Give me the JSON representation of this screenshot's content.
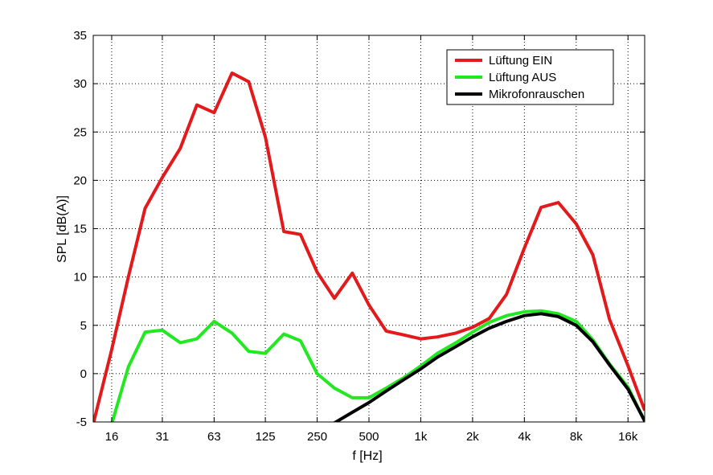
{
  "chart_data": {
    "type": "line",
    "xlabel": "f [Hz]",
    "ylabel": "SPL [dB(A)]",
    "x_scale": "log",
    "xlim": [
      12.5,
      20000
    ],
    "ylim": [
      -5,
      35
    ],
    "grid": true,
    "legend_position": "top-right",
    "x_tick_values": [
      16,
      31.5,
      63,
      125,
      250,
      500,
      1000,
      2000,
      4000,
      8000,
      16000
    ],
    "x_tick_labels": [
      "16",
      "31",
      "63",
      "125",
      "250",
      "500",
      "1k",
      "2k",
      "4k",
      "8k",
      "16k"
    ],
    "y_ticks": [
      -5,
      0,
      5,
      10,
      15,
      20,
      25,
      30,
      35
    ],
    "y_tick_labels": [
      "-5",
      "0",
      "5",
      "10",
      "15",
      "20",
      "25",
      "30",
      "35"
    ],
    "x": [
      12.5,
      16,
      20,
      25,
      31.5,
      40,
      50,
      63,
      80,
      100,
      125,
      160,
      200,
      250,
      315,
      400,
      500,
      630,
      800,
      1000,
      1250,
      1600,
      2000,
      2500,
      3150,
      4000,
      5000,
      6300,
      8000,
      10000,
      12500,
      16000,
      20000
    ],
    "series": [
      {
        "name": "Lüftung EIN",
        "color": "#e31a1c",
        "values": [
          -5.2,
          2.5,
          10,
          17.1,
          20.3,
          23.3,
          27.8,
          27.0,
          31.1,
          30.2,
          24.5,
          14.7,
          14.4,
          10.5,
          7.8,
          10.4,
          7.1,
          4.4,
          4.0,
          3.6,
          3.8,
          4.2,
          4.8,
          5.7,
          8.2,
          13.0,
          17.2,
          17.7,
          15.5,
          12.3,
          5.6,
          0.8,
          -3.8
        ]
      },
      {
        "name": "Lüftung AUS",
        "color": "#22e822",
        "values": [
          null,
          -5.2,
          0.7,
          4.3,
          4.5,
          3.2,
          3.6,
          5.4,
          4.2,
          2.3,
          2.1,
          4.1,
          3.4,
          0.0,
          -1.5,
          -2.5,
          -2.5,
          -1.5,
          -0.4,
          0.8,
          2.1,
          3.2,
          4.3,
          5.3,
          6.0,
          6.4,
          6.5,
          6.2,
          5.4,
          3.5,
          1.0,
          -1.4,
          -4.9
        ]
      },
      {
        "name": "Mikrofonrauschen",
        "color": "#000000",
        "values": [
          null,
          null,
          null,
          null,
          null,
          null,
          null,
          null,
          null,
          null,
          null,
          null,
          null,
          null,
          -5.1,
          -4.0,
          -3.0,
          -1.8,
          -0.6,
          0.5,
          1.7,
          2.8,
          3.8,
          4.7,
          5.4,
          6.0,
          6.2,
          5.9,
          5.0,
          3.3,
          0.9,
          -1.6,
          -4.9
        ]
      }
    ]
  }
}
